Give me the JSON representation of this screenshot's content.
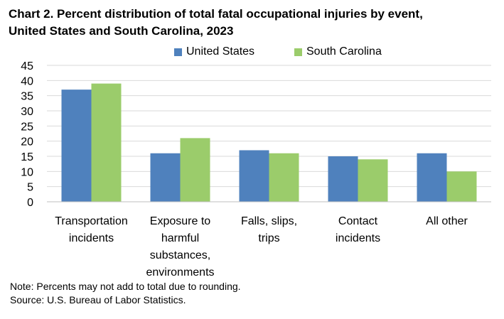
{
  "title_line1": "Chart 2. Percent distribution of total fatal occupational injuries by event,",
  "title_line2": "United States and South Carolina, 2023",
  "note": "Note: Percents may not add to total due to rounding.",
  "source": "Source: U.S. Bureau of Labor Statistics.",
  "colors": {
    "United States": "#4f81bd",
    "South Carolina": "#9bcc6b",
    "grid": "#d9d9d9",
    "axis": "#bfbfbf"
  },
  "chart_data": {
    "type": "bar",
    "title": "Chart 2. Percent distribution of total fatal occupational injuries by event, United States and South Carolina, 2023",
    "categories": [
      [
        "Transportation",
        "incidents"
      ],
      [
        "Exposure to",
        "harmful",
        "substances,",
        "environments"
      ],
      [
        "Falls, slips,",
        "trips"
      ],
      [
        "Contact",
        "incidents"
      ],
      [
        "All other"
      ]
    ],
    "series": [
      {
        "name": "United States",
        "values": [
          37,
          16,
          17,
          15,
          16
        ]
      },
      {
        "name": "South Carolina",
        "values": [
          39,
          21,
          16,
          14,
          10
        ]
      }
    ],
    "yticks": [
      0,
      5,
      10,
      15,
      20,
      25,
      30,
      35,
      40,
      45
    ],
    "ylim": [
      0,
      45
    ],
    "xlabel": "",
    "ylabel": "",
    "grid": true,
    "legend": "top-center"
  }
}
